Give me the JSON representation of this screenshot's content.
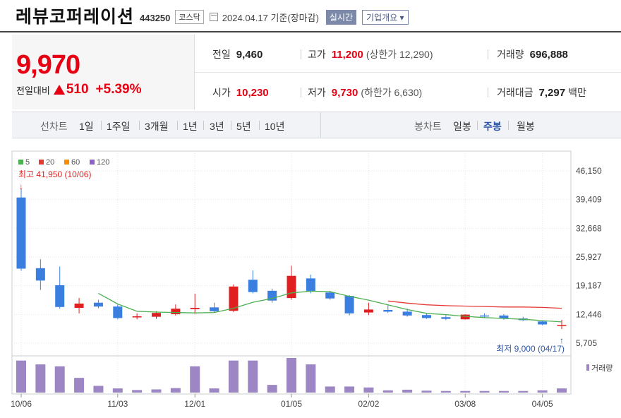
{
  "header": {
    "name": "레뷰코퍼레이션",
    "code": "443250",
    "market": "코스닥",
    "date": "2024.04.17 기준(장마감)",
    "realtime_label": "실시간",
    "company_info_label": "기업개요 ▾"
  },
  "price": {
    "current": "9,970",
    "change_label": "전일대비",
    "change_amount": "510",
    "change_pct": "+5.39%"
  },
  "stats": {
    "prev_label": "전일",
    "prev_value": "9,460",
    "high_label": "고가",
    "high_value": "11,200",
    "upper_limit": "(상한가 12,290)",
    "volume_label": "거래량",
    "volume_value": "696,888",
    "open_label": "시가",
    "open_value": "10,230",
    "low_label": "저가",
    "low_value": "9,730",
    "lower_limit": "(하한가 6,630)",
    "amount_label": "거래대금",
    "amount_value": "7,297",
    "amount_unit": "백만"
  },
  "toolbar": {
    "line_label": "선차트",
    "periods": [
      "1일",
      "1주일",
      "3개월",
      "1년",
      "3년",
      "5년",
      "10년"
    ],
    "candle_label": "봉차트",
    "candle_types": [
      "일봉",
      "주봉",
      "월봉"
    ],
    "active_candle": "주봉"
  },
  "chart_data": {
    "type": "candlestick",
    "interval": "weekly",
    "price_axis_ticks": [
      "46,150",
      "39,409",
      "32,668",
      "25,927",
      "19,187",
      "12,446",
      "5,705"
    ],
    "ylim": [
      5705,
      46150
    ],
    "x_tick_labels": [
      "10/06",
      "11/03",
      "12/01",
      "01/05",
      "02/02",
      "03/08",
      "04/05"
    ],
    "x_tick_index": [
      0,
      5,
      9,
      14,
      18,
      23,
      27
    ],
    "legend": [
      {
        "name": "5",
        "color": "#4caf50"
      },
      {
        "name": "20",
        "color": "#e53935"
      },
      {
        "name": "60",
        "color": "#fb8c00"
      },
      {
        "name": "120",
        "color": "#8e63c7"
      }
    ],
    "volume_label": "거래량",
    "volume_color": "#9d86c4",
    "up_color": "#e02020",
    "down_color": "#3a7fe0",
    "max_annotation": "최고 41,950 (10/06)",
    "min_annotation": "최저 9,000 (04/17)",
    "candles": [
      {
        "o": 39900,
        "h": 41950,
        "l": 22700,
        "c": 23200
      },
      {
        "o": 23300,
        "h": 25400,
        "l": 18200,
        "c": 20400
      },
      {
        "o": 19300,
        "h": 23700,
        "l": 13800,
        "c": 14200
      },
      {
        "o": 14000,
        "h": 16300,
        "l": 12700,
        "c": 15000
      },
      {
        "o": 15200,
        "h": 15900,
        "l": 13900,
        "c": 14300
      },
      {
        "o": 14300,
        "h": 14800,
        "l": 11300,
        "c": 11600
      },
      {
        "o": 11900,
        "h": 12700,
        "l": 11300,
        "c": 12000
      },
      {
        "o": 11900,
        "h": 13200,
        "l": 11400,
        "c": 12800
      },
      {
        "o": 12500,
        "h": 14800,
        "l": 12200,
        "c": 13800
      },
      {
        "o": 13700,
        "h": 17300,
        "l": 12600,
        "c": 14000
      },
      {
        "o": 14100,
        "h": 15200,
        "l": 13000,
        "c": 13200
      },
      {
        "o": 13300,
        "h": 19500,
        "l": 13000,
        "c": 19000
      },
      {
        "o": 20600,
        "h": 22800,
        "l": 17400,
        "c": 17700
      },
      {
        "o": 18000,
        "h": 18500,
        "l": 15200,
        "c": 15700
      },
      {
        "o": 16300,
        "h": 23900,
        "l": 15900,
        "c": 21500
      },
      {
        "o": 20900,
        "h": 21800,
        "l": 17400,
        "c": 17900
      },
      {
        "o": 17600,
        "h": 18000,
        "l": 15900,
        "c": 16200
      },
      {
        "o": 16800,
        "h": 17000,
        "l": 12200,
        "c": 12700
      },
      {
        "o": 12900,
        "h": 15200,
        "l": 12300,
        "c": 13600
      },
      {
        "o": 13500,
        "h": 14600,
        "l": 12800,
        "c": 13100
      },
      {
        "o": 13100,
        "h": 13800,
        "l": 11900,
        "c": 12200
      },
      {
        "o": 12300,
        "h": 12700,
        "l": 11400,
        "c": 11600
      },
      {
        "o": 11800,
        "h": 12300,
        "l": 11100,
        "c": 11400
      },
      {
        "o": 11300,
        "h": 12500,
        "l": 11200,
        "c": 12400
      },
      {
        "o": 12200,
        "h": 12700,
        "l": 11800,
        "c": 12000
      },
      {
        "o": 12200,
        "h": 12500,
        "l": 11200,
        "c": 11500
      },
      {
        "o": 11500,
        "h": 11900,
        "l": 10900,
        "c": 11100
      },
      {
        "o": 10800,
        "h": 11000,
        "l": 9900,
        "c": 10100
      },
      {
        "o": 9900,
        "h": 11200,
        "l": 9000,
        "c": 9970
      }
    ],
    "ma5": [
      null,
      null,
      null,
      null,
      17400,
      14900,
      13200,
      13000,
      12900,
      12800,
      12900,
      13900,
      15300,
      16200,
      17500,
      17900,
      17800,
      16700,
      15800,
      14700,
      13600,
      12700,
      12400,
      12000,
      11700,
      11500,
      11300,
      11000,
      10700
    ],
    "ma20": [
      null,
      null,
      null,
      null,
      null,
      null,
      null,
      null,
      null,
      null,
      null,
      null,
      null,
      null,
      null,
      null,
      null,
      null,
      null,
      15600,
      15100,
      14700,
      14500,
      14400,
      14300,
      14200,
      14200,
      14100,
      13900
    ],
    "volumes": [
      100,
      88,
      82,
      46,
      21,
      13,
      8,
      10,
      14,
      82,
      13,
      100,
      100,
      24,
      108,
      88,
      19,
      19,
      16,
      7,
      9,
      6,
      5,
      5,
      5,
      5,
      5,
      7,
      13
    ]
  }
}
